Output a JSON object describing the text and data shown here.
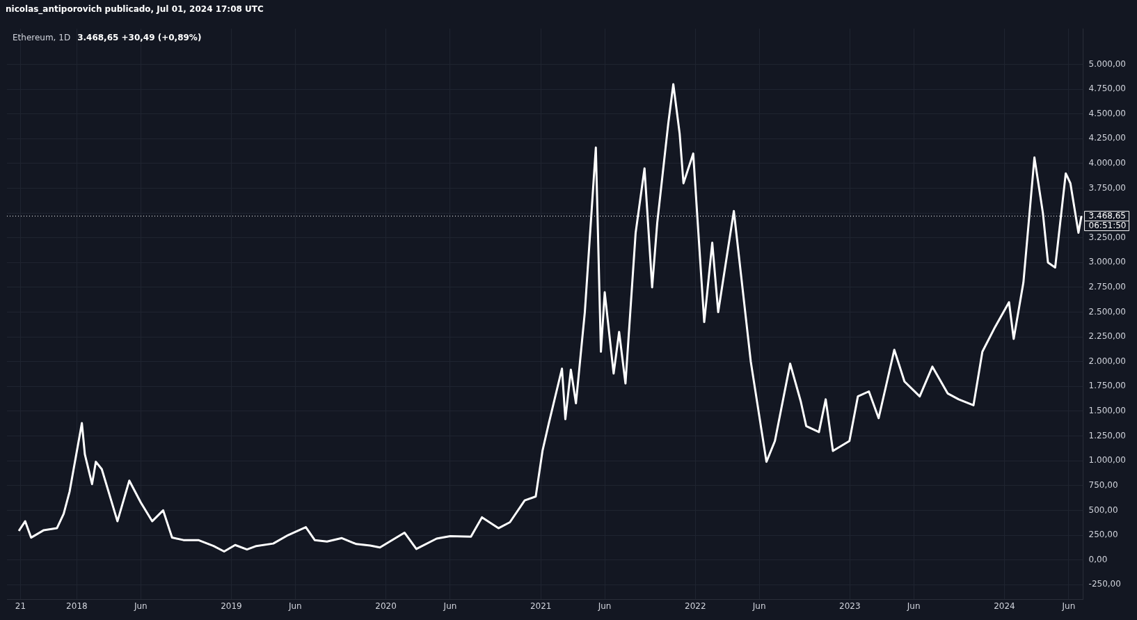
{
  "chart_data": {
    "type": "line",
    "title": "Ethereum, 1D",
    "subtitle": "3.468,65 +30,49 (+0,89%)",
    "annotations": [
      "nicolas_antiporovich publicado, Jul 01, 2024 17:08 UTC",
      "06:51:50"
    ],
    "x": [
      "2017-08-17",
      "2017-09-01",
      "2017-09-15",
      "2017-10-15",
      "2017-11-15",
      "2017-12-01",
      "2017-12-15",
      "2018-01-13",
      "2018-01-20",
      "2018-02-06",
      "2018-02-15",
      "2018-03-01",
      "2018-04-07",
      "2018-05-05",
      "2018-06-01",
      "2018-06-28",
      "2018-07-24",
      "2018-08-14",
      "2018-09-10",
      "2018-10-15",
      "2018-11-20",
      "2018-12-15",
      "2019-01-10",
      "2019-02-07",
      "2019-03-01",
      "2019-04-10",
      "2019-05-15",
      "2019-06-26",
      "2019-07-17",
      "2019-08-15",
      "2019-09-19",
      "2019-10-23",
      "2019-11-25",
      "2019-12-18",
      "2020-02-14",
      "2020-03-13",
      "2020-04-30",
      "2020-06-01",
      "2020-07-20",
      "2020-08-15",
      "2020-09-23",
      "2020-10-20",
      "2020-11-24",
      "2020-12-20",
      "2021-01-05",
      "2021-01-20",
      "2021-02-20",
      "2021-02-28",
      "2021-03-13",
      "2021-03-25",
      "2021-04-15",
      "2021-05-11",
      "2021-05-23",
      "2021-06-01",
      "2021-06-22",
      "2021-07-05",
      "2021-07-20",
      "2021-08-13",
      "2021-09-03",
      "2021-09-21",
      "2021-10-03",
      "2021-10-29",
      "2021-11-10",
      "2021-11-25",
      "2021-12-04",
      "2021-12-27",
      "2022-01-22",
      "2022-02-10",
      "2022-02-24",
      "2022-04-02",
      "2022-05-12",
      "2022-06-18",
      "2022-07-08",
      "2022-08-13",
      "2022-09-07",
      "2022-09-20",
      "2022-10-20",
      "2022-11-05",
      "2022-11-22",
      "2022-12-31",
      "2023-01-20",
      "2023-02-15",
      "2023-03-10",
      "2023-04-16",
      "2023-05-10",
      "2023-06-15",
      "2023-07-15",
      "2023-08-20",
      "2023-09-15",
      "2023-10-20",
      "2023-11-10",
      "2023-12-10",
      "2024-01-12",
      "2024-01-23",
      "2024-02-15",
      "2024-03-12",
      "2024-04-01",
      "2024-04-13",
      "2024-04-30",
      "2024-05-25",
      "2024-06-05",
      "2024-06-24",
      "2024-07-01"
    ],
    "series": [
      {
        "color": "#ffffff",
        "values": [
          292,
          390,
          225,
          300,
          320,
          465,
          690,
          1380,
          1065,
          765,
          990,
          915,
          390,
          800,
          580,
          390,
          500,
          225,
          200,
          200,
          140,
          85,
          150,
          105,
          140,
          165,
          250,
          330,
          200,
          185,
          220,
          160,
          145,
          125,
          275,
          110,
          215,
          240,
          235,
          430,
          320,
          380,
          600,
          640,
          1100,
          1380,
          1930,
          1420,
          1920,
          1580,
          2500,
          4160,
          2100,
          2700,
          1880,
          2300,
          1780,
          3300,
          3950,
          2750,
          3400,
          4400,
          4800,
          4300,
          3800,
          4100,
          2400,
          3200,
          2500,
          3520,
          2000,
          990,
          1200,
          1980,
          1600,
          1350,
          1290,
          1620,
          1100,
          1200,
          1650,
          1700,
          1430,
          2120,
          1800,
          1650,
          1950,
          1680,
          1620,
          1560,
          2100,
          2350,
          2600,
          2230,
          2800,
          4060,
          3500,
          3000,
          2950,
          3900,
          3800,
          3300,
          3470
        ]
      }
    ],
    "xlim": [
      "2017-07-20",
      "2024-07-05"
    ],
    "xticks": [
      {
        "value": "2017-08-21",
        "label": "21"
      },
      {
        "value": "2018-01-01",
        "label": "2018"
      },
      {
        "value": "2018-06-01",
        "label": "Jun"
      },
      {
        "value": "2019-01-01",
        "label": "2019"
      },
      {
        "value": "2019-06-01",
        "label": "Jun"
      },
      {
        "value": "2020-01-01",
        "label": "2020"
      },
      {
        "value": "2020-06-01",
        "label": "Jun"
      },
      {
        "value": "2021-01-01",
        "label": "2021"
      },
      {
        "value": "2021-06-01",
        "label": "Jun"
      },
      {
        "value": "2022-01-01",
        "label": "2022"
      },
      {
        "value": "2022-06-01",
        "label": "Jun"
      },
      {
        "value": "2023-01-01",
        "label": "2023"
      },
      {
        "value": "2023-06-01",
        "label": "Jun"
      },
      {
        "value": "2024-01-01",
        "label": "2024"
      },
      {
        "value": "2024-06-01",
        "label": "Jun"
      }
    ],
    "ylim": [
      -400,
      5360
    ],
    "yticks": [
      {
        "value": -250,
        "label": "-250,00"
      },
      {
        "value": 0,
        "label": "0,00"
      },
      {
        "value": 250,
        "label": "250,00"
      },
      {
        "value": 500,
        "label": "500,00"
      },
      {
        "value": 750,
        "label": "750,00"
      },
      {
        "value": 1000,
        "label": "1.000,00"
      },
      {
        "value": 1250,
        "label": "1.250,00"
      },
      {
        "value": 1500,
        "label": "1.500,00"
      },
      {
        "value": 1750,
        "label": "1.750,00"
      },
      {
        "value": 2000,
        "label": "2.000,00"
      },
      {
        "value": 2250,
        "label": "2.250,00"
      },
      {
        "value": 2500,
        "label": "2.500,00"
      },
      {
        "value": 2750,
        "label": "2.750,00"
      },
      {
        "value": 3000,
        "label": "3.000,00"
      },
      {
        "value": 3250,
        "label": "3.250,00"
      },
      {
        "value": 3500,
        "label": null
      },
      {
        "value": 3750,
        "label": "3.750,00"
      },
      {
        "value": 4000,
        "label": "4.000,00"
      },
      {
        "value": 4250,
        "label": "4.250,00"
      },
      {
        "value": 4500,
        "label": "4.500,00"
      },
      {
        "value": 4750,
        "label": "4.750,00"
      },
      {
        "value": 5000,
        "label": "5.000,00"
      }
    ],
    "ref_lines": [
      {
        "axis": "y",
        "value": 3468.65,
        "label": "3.468,65",
        "color": "#ffffff",
        "line_style": "dotted"
      }
    ],
    "grid": true,
    "legend": false,
    "marker": "none",
    "line_style": "solid"
  }
}
